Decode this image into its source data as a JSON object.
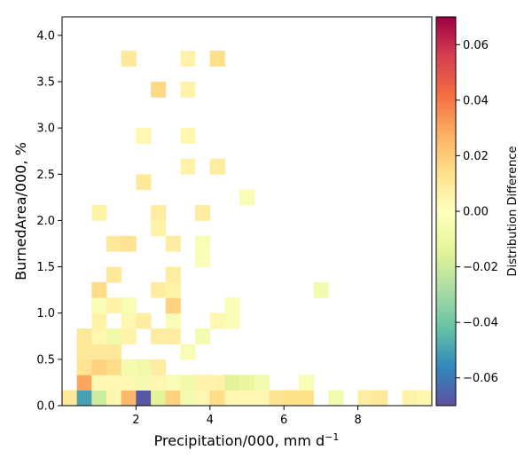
{
  "chart_data": {
    "type": "heatmap",
    "xlabel": "Precipitation/000,  mm d",
    "xlabel_sup": "−1",
    "ylabel": "BurnedArea/000,  %",
    "colorbar_label": "Distribution Difference",
    "xlim": [
      0,
      10
    ],
    "ylim": [
      0,
      4.2
    ],
    "xticks": [
      2,
      4,
      6,
      8
    ],
    "xtick_labels": [
      "2",
      "4",
      "6",
      "8"
    ],
    "yticks": [
      0.0,
      0.5,
      1.0,
      1.5,
      2.0,
      2.5,
      3.0,
      3.5,
      4.0
    ],
    "ytick_labels": [
      "0.0",
      "0.5",
      "1.0",
      "1.5",
      "2.0",
      "2.5",
      "3.0",
      "3.5",
      "4.0"
    ],
    "clim": [
      -0.07,
      0.07
    ],
    "cbar_ticks": [
      -0.06,
      -0.04,
      -0.02,
      0.0,
      0.02,
      0.04,
      0.06
    ],
    "cbar_tick_labels": [
      "−0.06",
      "−0.04",
      "−0.02",
      "0.00",
      "0.02",
      "0.04",
      "0.06"
    ],
    "colormap": "Spectral_r",
    "bin_width_x": 0.4,
    "bin_width_y": 0.167,
    "cells": [
      {
        "x": 0.0,
        "y": 0.0,
        "v": 0.01
      },
      {
        "x": 0.4,
        "y": 0.0,
        "v": -0.05
      },
      {
        "x": 0.8,
        "y": 0.0,
        "v": -0.02
      },
      {
        "x": 1.2,
        "y": 0.0,
        "v": 0.004
      },
      {
        "x": 1.6,
        "y": 0.0,
        "v": 0.025
      },
      {
        "x": 2.0,
        "y": 0.0,
        "v": -0.068
      },
      {
        "x": 2.4,
        "y": 0.0,
        "v": -0.015
      },
      {
        "x": 2.8,
        "y": 0.0,
        "v": 0.018
      },
      {
        "x": 3.2,
        "y": 0.0,
        "v": -0.006
      },
      {
        "x": 3.6,
        "y": 0.0,
        "v": 0.004
      },
      {
        "x": 4.0,
        "y": 0.0,
        "v": 0.015
      },
      {
        "x": 4.4,
        "y": 0.0,
        "v": 0.004
      },
      {
        "x": 4.8,
        "y": 0.0,
        "v": 0.004
      },
      {
        "x": 5.2,
        "y": 0.0,
        "v": 0.004
      },
      {
        "x": 5.6,
        "y": 0.0,
        "v": 0.012
      },
      {
        "x": 6.0,
        "y": 0.0,
        "v": 0.014
      },
      {
        "x": 6.4,
        "y": 0.0,
        "v": 0.014
      },
      {
        "x": 7.2,
        "y": 0.0,
        "v": -0.006
      },
      {
        "x": 8.0,
        "y": 0.0,
        "v": 0.008
      },
      {
        "x": 8.4,
        "y": 0.0,
        "v": 0.01
      },
      {
        "x": 9.2,
        "y": 0.0,
        "v": 0.006
      },
      {
        "x": 9.6,
        "y": 0.0,
        "v": 0.004
      },
      {
        "x": 0.4,
        "y": 0.167,
        "v": 0.03
      },
      {
        "x": 0.8,
        "y": 0.167,
        "v": 0.004
      },
      {
        "x": 1.2,
        "y": 0.167,
        "v": 0.004
      },
      {
        "x": 1.6,
        "y": 0.167,
        "v": 0.004
      },
      {
        "x": 2.0,
        "y": 0.167,
        "v": -0.006
      },
      {
        "x": 2.4,
        "y": 0.167,
        "v": 0.004
      },
      {
        "x": 2.8,
        "y": 0.167,
        "v": -0.004
      },
      {
        "x": 3.2,
        "y": 0.167,
        "v": -0.008
      },
      {
        "x": 3.6,
        "y": 0.167,
        "v": 0.006
      },
      {
        "x": 4.0,
        "y": 0.167,
        "v": 0.006
      },
      {
        "x": 4.4,
        "y": 0.167,
        "v": -0.015
      },
      {
        "x": 4.8,
        "y": 0.167,
        "v": -0.012
      },
      {
        "x": 5.2,
        "y": 0.167,
        "v": -0.006
      },
      {
        "x": 6.4,
        "y": 0.167,
        "v": -0.004
      },
      {
        "x": 0.4,
        "y": 0.333,
        "v": 0.012
      },
      {
        "x": 0.8,
        "y": 0.333,
        "v": 0.018
      },
      {
        "x": 1.2,
        "y": 0.333,
        "v": 0.015
      },
      {
        "x": 1.6,
        "y": 0.333,
        "v": -0.006
      },
      {
        "x": 2.0,
        "y": 0.333,
        "v": -0.008
      },
      {
        "x": 2.4,
        "y": 0.333,
        "v": 0.008
      },
      {
        "x": 0.4,
        "y": 0.5,
        "v": 0.01
      },
      {
        "x": 0.8,
        "y": 0.5,
        "v": 0.01
      },
      {
        "x": 1.2,
        "y": 0.5,
        "v": 0.01
      },
      {
        "x": 3.2,
        "y": 0.5,
        "v": -0.004
      },
      {
        "x": 0.4,
        "y": 0.667,
        "v": 0.01
      },
      {
        "x": 0.8,
        "y": 0.667,
        "v": 0.004
      },
      {
        "x": 1.2,
        "y": 0.667,
        "v": -0.008
      },
      {
        "x": 1.6,
        "y": 0.667,
        "v": 0.006
      },
      {
        "x": 2.4,
        "y": 0.667,
        "v": 0.008
      },
      {
        "x": 2.8,
        "y": 0.667,
        "v": 0.008
      },
      {
        "x": 3.6,
        "y": 0.667,
        "v": -0.006
      },
      {
        "x": 0.8,
        "y": 0.833,
        "v": 0.006
      },
      {
        "x": 1.6,
        "y": 0.833,
        "v": 0.004
      },
      {
        "x": 2.0,
        "y": 0.833,
        "v": 0.008
      },
      {
        "x": 2.8,
        "y": 0.833,
        "v": -0.004
      },
      {
        "x": 4.0,
        "y": 0.833,
        "v": 0.004
      },
      {
        "x": 4.4,
        "y": 0.833,
        "v": -0.004
      },
      {
        "x": 0.8,
        "y": 1.0,
        "v": -0.004
      },
      {
        "x": 1.2,
        "y": 1.0,
        "v": 0.006
      },
      {
        "x": 1.6,
        "y": 1.0,
        "v": -0.004
      },
      {
        "x": 2.8,
        "y": 1.0,
        "v": 0.018
      },
      {
        "x": 4.4,
        "y": 1.0,
        "v": -0.004
      },
      {
        "x": 0.8,
        "y": 1.167,
        "v": 0.015
      },
      {
        "x": 2.4,
        "y": 1.167,
        "v": 0.008
      },
      {
        "x": 2.8,
        "y": 1.167,
        "v": 0.006
      },
      {
        "x": 6.8,
        "y": 1.167,
        "v": -0.006
      },
      {
        "x": 1.2,
        "y": 1.333,
        "v": 0.01
      },
      {
        "x": 2.8,
        "y": 1.333,
        "v": 0.008
      },
      {
        "x": 3.6,
        "y": 1.5,
        "v": -0.003
      },
      {
        "x": 1.2,
        "y": 1.667,
        "v": 0.01
      },
      {
        "x": 1.6,
        "y": 1.667,
        "v": 0.012
      },
      {
        "x": 2.8,
        "y": 1.667,
        "v": 0.008
      },
      {
        "x": 3.6,
        "y": 1.667,
        "v": -0.004
      },
      {
        "x": 2.4,
        "y": 1.833,
        "v": 0.006
      },
      {
        "x": 0.8,
        "y": 2.0,
        "v": 0.006
      },
      {
        "x": 2.4,
        "y": 2.0,
        "v": 0.008
      },
      {
        "x": 3.6,
        "y": 2.0,
        "v": 0.008
      },
      {
        "x": 4.8,
        "y": 2.167,
        "v": -0.004
      },
      {
        "x": 2.0,
        "y": 2.333,
        "v": 0.01
      },
      {
        "x": 3.2,
        "y": 2.5,
        "v": 0.006
      },
      {
        "x": 4.0,
        "y": 2.5,
        "v": 0.008
      },
      {
        "x": 2.0,
        "y": 2.833,
        "v": 0.004
      },
      {
        "x": 3.2,
        "y": 2.833,
        "v": 0.004
      },
      {
        "x": 2.4,
        "y": 3.333,
        "v": 0.016
      },
      {
        "x": 3.2,
        "y": 3.333,
        "v": 0.006
      },
      {
        "x": 1.6,
        "y": 3.667,
        "v": 0.01
      },
      {
        "x": 3.2,
        "y": 3.667,
        "v": 0.006
      },
      {
        "x": 4.0,
        "y": 3.667,
        "v": 0.014
      }
    ]
  }
}
